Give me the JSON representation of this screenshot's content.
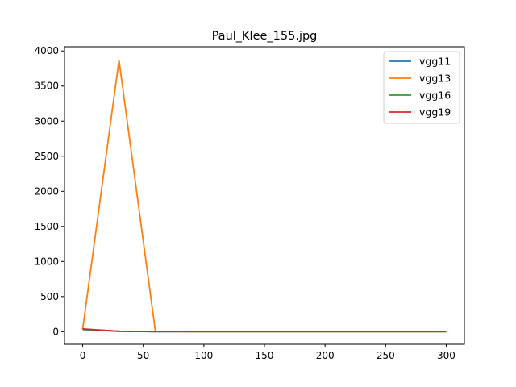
{
  "chart_data": {
    "type": "line",
    "title": "Paul_Klee_155.jpg",
    "xlabel": "",
    "ylabel": "",
    "xlim": [
      -15,
      315
    ],
    "ylim": [
      -180,
      4060
    ],
    "xticks": [
      0,
      50,
      100,
      150,
      200,
      250,
      300
    ],
    "yticks": [
      0,
      500,
      1000,
      1500,
      2000,
      2500,
      3000,
      3500,
      4000
    ],
    "grid": false,
    "legend_position": "top-right",
    "x": [
      0,
      30,
      60,
      90,
      120,
      150,
      180,
      210,
      240,
      270,
      300
    ],
    "series": [
      {
        "name": "vgg11",
        "color": "#1f77b4",
        "values": [
          30,
          5,
          2,
          1,
          1,
          1,
          1,
          1,
          1,
          1,
          1
        ]
      },
      {
        "name": "vgg13",
        "color": "#ff7f0e",
        "values": [
          30,
          3870,
          5,
          1,
          1,
          1,
          1,
          1,
          1,
          1,
          1
        ]
      },
      {
        "name": "vgg16",
        "color": "#2ca02c",
        "values": [
          35,
          6,
          2,
          1,
          1,
          1,
          1,
          1,
          1,
          1,
          1
        ]
      },
      {
        "name": "vgg19",
        "color": "#d62728",
        "values": [
          40,
          6,
          2,
          1,
          1,
          1,
          1,
          1,
          1,
          1,
          1
        ]
      }
    ]
  }
}
